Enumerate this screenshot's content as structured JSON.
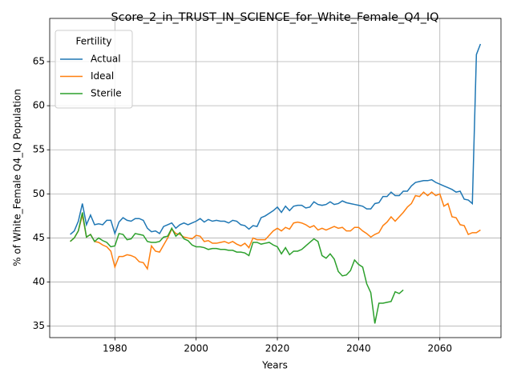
{
  "chart_data": {
    "type": "line",
    "title": "Score_2_in_TRUST_IN_SCIENCE_for_White_Female_Q4_IQ",
    "x_label": "Years",
    "y_label": "% of White_Female Q4_IQ Population",
    "legend_title": "Fertility",
    "legend": "upper left",
    "grid": true,
    "x": [
      1969,
      1970,
      1971,
      1972,
      1973,
      1974,
      1975,
      1976,
      1977,
      1978,
      1979,
      1980,
      1981,
      1982,
      1983,
      1984,
      1985,
      1986,
      1987,
      1988,
      1989,
      1990,
      1991,
      1992,
      1993,
      1994,
      1995,
      1996,
      1997,
      1998,
      1999,
      2000,
      2001,
      2002,
      2003,
      2004,
      2005,
      2006,
      2007,
      2008,
      2009,
      2010,
      2011,
      2012,
      2013,
      2014,
      2015,
      2016,
      2017,
      2018,
      2019,
      2020,
      2021,
      2022,
      2023,
      2024,
      2025,
      2026,
      2027,
      2028,
      2029,
      2030,
      2031,
      2032,
      2033,
      2034,
      2035,
      2036,
      2037,
      2038,
      2039,
      2040,
      2041,
      2042,
      2043,
      2044,
      2045,
      2046,
      2047,
      2048,
      2049,
      2050,
      2051,
      2052,
      2053,
      2054,
      2055,
      2056,
      2057,
      2058,
      2059,
      2060,
      2061,
      2062,
      2063,
      2064,
      2065,
      2066,
      2067,
      2068,
      2069,
      2070
    ],
    "series": [
      {
        "name": "Actual",
        "color": "#1f77b4",
        "values": [
          45.4,
          45.8,
          46.9,
          48.9,
          46.5,
          47.6,
          46.5,
          46.6,
          46.5,
          47.0,
          47.0,
          45.5,
          46.8,
          47.3,
          47.0,
          46.9,
          47.2,
          47.2,
          47.0,
          46.1,
          45.7,
          45.8,
          45.5,
          46.3,
          46.5,
          46.7,
          46.1,
          46.5,
          46.7,
          46.5,
          46.7,
          46.9,
          47.2,
          46.8,
          47.1,
          46.9,
          47.0,
          46.9,
          46.9,
          46.7,
          47.0,
          46.9,
          46.5,
          46.4,
          46.0,
          46.4,
          46.3,
          47.3,
          47.5,
          47.8,
          48.1,
          48.5,
          47.9,
          48.6,
          48.1,
          48.6,
          48.7,
          48.7,
          48.4,
          48.5,
          49.1,
          48.8,
          48.7,
          48.8,
          49.1,
          48.8,
          48.9,
          49.2,
          49.0,
          48.9,
          48.8,
          48.7,
          48.6,
          48.3,
          48.3,
          48.9,
          49.0,
          49.7,
          49.7,
          50.2,
          49.8,
          49.8,
          50.3,
          50.3,
          50.9,
          51.3,
          51.4,
          51.5,
          51.5,
          51.6,
          51.3,
          51.1,
          50.9,
          50.7,
          50.5,
          50.2,
          50.3,
          49.4,
          49.3,
          48.9,
          65.8,
          67.0
        ]
      },
      {
        "name": "Ideal",
        "color": "#ff7f0e",
        "values": [
          44.6,
          45.0,
          45.8,
          47.6,
          45.1,
          45.4,
          44.6,
          44.5,
          44.2,
          44.0,
          43.5,
          41.7,
          42.9,
          42.9,
          43.1,
          43.0,
          42.8,
          42.3,
          42.2,
          41.5,
          44.1,
          43.5,
          43.4,
          44.2,
          45.0,
          46.0,
          45.5,
          45.4,
          45.1,
          45.0,
          44.9,
          45.3,
          45.2,
          44.6,
          44.7,
          44.4,
          44.4,
          44.5,
          44.6,
          44.4,
          44.6,
          44.3,
          44.1,
          44.4,
          43.9,
          45.0,
          44.8,
          44.8,
          44.8,
          45.3,
          45.8,
          46.1,
          45.8,
          46.2,
          46.0,
          46.7,
          46.8,
          46.7,
          46.5,
          46.2,
          46.4,
          45.9,
          46.1,
          45.9,
          46.1,
          46.3,
          46.1,
          46.2,
          45.8,
          45.8,
          46.2,
          46.2,
          45.8,
          45.5,
          45.1,
          45.4,
          45.6,
          46.4,
          46.8,
          47.4,
          46.9,
          47.4,
          47.9,
          48.5,
          48.9,
          49.8,
          49.7,
          50.2,
          49.8,
          50.2,
          49.8,
          50.0,
          48.6,
          48.9,
          47.4,
          47.3,
          46.5,
          46.4,
          45.4,
          45.6,
          45.6,
          45.9
        ]
      },
      {
        "name": "Sterile",
        "color": "#2ca02c",
        "values": [
          44.6,
          45.0,
          45.8,
          47.9,
          45.1,
          45.4,
          44.6,
          45.0,
          44.7,
          44.5,
          44.0,
          44.1,
          45.5,
          45.4,
          44.8,
          44.9,
          45.5,
          45.4,
          45.3,
          44.6,
          44.5,
          44.5,
          44.6,
          45.1,
          45.2,
          46.1,
          45.2,
          45.6,
          44.9,
          44.7,
          44.2,
          44.0,
          44.0,
          43.9,
          43.7,
          43.8,
          43.8,
          43.7,
          43.7,
          43.6,
          43.6,
          43.4,
          43.4,
          43.3,
          43.0,
          44.5,
          44.5,
          44.3,
          44.4,
          44.5,
          44.2,
          44.0,
          43.2,
          43.9,
          43.1,
          43.5,
          43.5,
          43.7,
          44.1,
          44.5,
          44.9,
          44.6,
          43.0,
          42.7,
          43.2,
          42.6,
          41.2,
          40.7,
          40.8,
          41.3,
          42.5,
          42.0,
          41.7,
          39.8,
          38.8,
          35.3,
          37.6,
          37.6,
          37.7,
          37.8,
          38.9,
          38.7,
          39.1,
          null,
          null,
          null,
          null,
          null,
          null,
          null,
          null,
          null,
          null,
          null,
          null,
          null,
          null,
          null,
          null,
          null,
          null,
          null
        ]
      }
    ],
    "xlim": [
      1963.95,
      2075.05
    ],
    "xticks": [
      1980,
      2000,
      2020,
      2040,
      2060
    ],
    "ylim": [
      33.7,
      69.9
    ],
    "yticks": [
      35,
      40,
      45,
      50,
      55,
      60,
      65
    ]
  }
}
